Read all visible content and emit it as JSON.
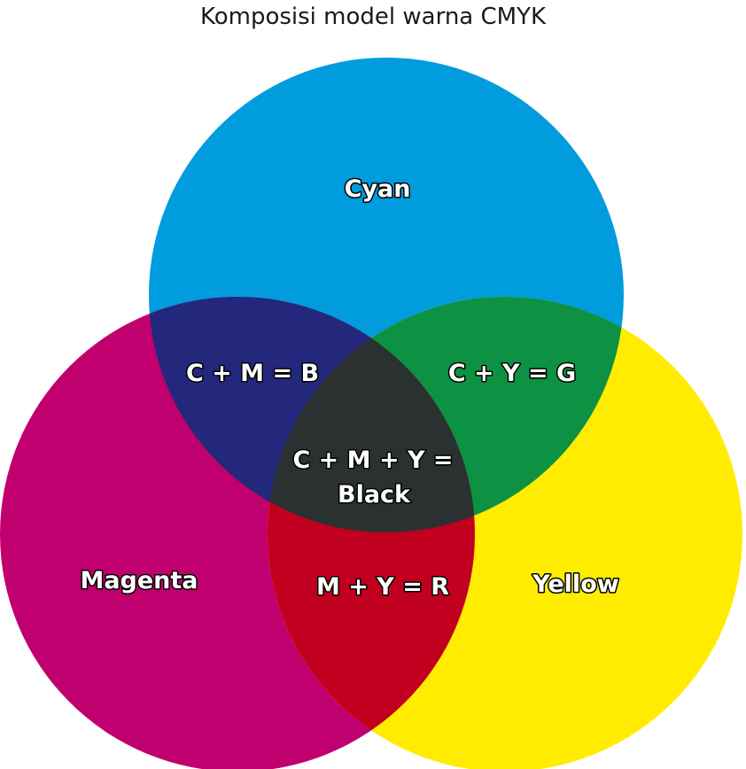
{
  "title": "Komposisi model warna CMYK",
  "circles": {
    "cyan": {
      "label": "Cyan",
      "color": "#009cdd"
    },
    "magenta": {
      "label": "Magenta",
      "color": "#c1006f"
    },
    "yellow": {
      "label": "Yellow",
      "color": "#ffec00"
    }
  },
  "overlaps": {
    "cyan_magenta": {
      "label": "C + M = B",
      "color": "#23287c"
    },
    "cyan_yellow": {
      "label": "C + Y = G",
      "color": "#0d9143"
    },
    "magenta_yellow": {
      "label": "M + Y = R",
      "color": "#c1001f"
    },
    "all": {
      "label_line1": "C + M + Y =",
      "label_line2": "Black",
      "color": "#2b3130"
    }
  }
}
